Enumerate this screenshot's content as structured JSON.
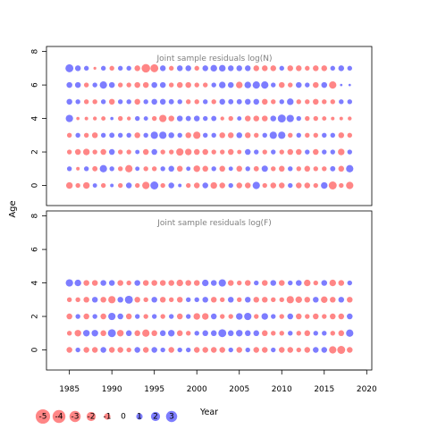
{
  "colors": {
    "positive": "#4040ff",
    "negative": "#ff4d4d",
    "panel_title": "#808080",
    "axis": "#000000"
  },
  "chart_data": [
    {
      "type": "scatter",
      "title": "Joint sample residuals log(N)",
      "xlabel": "",
      "ylabel": "Age",
      "xlim": [
        1982.3,
        2020.6
      ],
      "ylim": [
        -1.2,
        8.3
      ],
      "yticks": [
        0,
        2,
        4,
        6,
        8
      ],
      "x_years": [
        1985,
        1986,
        1987,
        1988,
        1989,
        1990,
        1991,
        1992,
        1993,
        1994,
        1995,
        1996,
        1997,
        1998,
        1999,
        2000,
        2001,
        2002,
        2003,
        2004,
        2005,
        2006,
        2007,
        2008,
        2009,
        2010,
        2011,
        2012,
        2013,
        2014,
        2015,
        2016,
        2017,
        2018
      ],
      "ages": [
        0,
        1,
        2,
        3,
        4,
        5,
        6,
        7
      ],
      "residuals": [
        [
          -2,
          -1,
          -2,
          0.8,
          -1,
          0.5,
          -1,
          1.5,
          -1,
          -2.5,
          3,
          -1,
          1.5,
          0.5,
          -1,
          -1.5,
          1.5,
          -2,
          -1.5,
          1,
          -1.5,
          -1.5,
          2.5,
          -1,
          -1.5,
          -1.5,
          1,
          -1.5,
          -1.5,
          -1,
          2,
          -3,
          -1,
          -2.5
        ],
        [
          1,
          -0.5,
          1,
          -1.2,
          2.5,
          1,
          -1,
          -2.5,
          0.8,
          -1,
          -1,
          1,
          1.5,
          -1.5,
          0.8,
          -2,
          -1.5,
          1,
          -1.5,
          0.8,
          -1.5,
          1,
          -1.2,
          1.8,
          -1,
          -1.5,
          1,
          -1,
          -1.5,
          -1,
          -1,
          1.2,
          -1.5,
          2.5
        ],
        [
          -1,
          -1.5,
          -2,
          -1,
          -1.5,
          1.5,
          -1,
          -1,
          0.8,
          -1.5,
          1.5,
          -1,
          -1,
          -2.5,
          -2,
          -1.5,
          -1.5,
          -1,
          -1,
          -1.5,
          -0.8,
          1.5,
          1,
          -1,
          1,
          -1,
          -1.5,
          -1.5,
          1,
          -1.5,
          1,
          1,
          -2,
          1
        ],
        [
          -1,
          1,
          -1,
          -1.5,
          1,
          1.2,
          1,
          1,
          -1.5,
          1,
          2.5,
          2.5,
          1.5,
          1,
          -1.5,
          -2.5,
          1,
          1,
          -1.5,
          -1.5,
          1.5,
          -1.5,
          -1,
          1,
          2.5,
          2.5,
          -1,
          1,
          -1,
          -1,
          1,
          1,
          -1.5,
          -1
        ],
        [
          2.5,
          -0.4,
          -0.5,
          -0.6,
          -0.8,
          0.4,
          -1,
          -0.6,
          1,
          0.8,
          -1,
          -2.5,
          -1.5,
          1.5,
          1.2,
          1.5,
          1,
          1.2,
          -0.6,
          -1,
          0.8,
          -1.5,
          -1.5,
          -1.5,
          1.5,
          3,
          2.5,
          1,
          -1,
          -1,
          -0.8,
          -0.5,
          -0.5,
          -0.6
        ],
        [
          1.5,
          1,
          -1,
          -1,
          1,
          -1.5,
          1,
          1,
          -1.5,
          1,
          1.5,
          1.5,
          1.2,
          1,
          -1,
          -1,
          1,
          -1,
          1.5,
          1.2,
          1.2,
          1.5,
          1.5,
          -1.5,
          -1,
          1,
          2,
          -1,
          -1,
          -1.5,
          -1,
          -1,
          1,
          1
        ],
        [
          1.5,
          1.5,
          -1,
          1,
          2.5,
          1.5,
          -1,
          -1,
          -1.5,
          -1.5,
          1.5,
          1.5,
          -1,
          -1.5,
          -1.5,
          -1,
          -1,
          1,
          2,
          1.5,
          -2,
          2,
          2.5,
          2.5,
          1,
          -1.5,
          -1,
          1.5,
          1,
          -1.5,
          1.5,
          -2.5,
          0.2,
          0.2
        ],
        [
          3,
          1.5,
          1,
          -0.3,
          1,
          -1,
          1,
          1,
          -1.5,
          -3.5,
          -3,
          1.5,
          -1,
          1.5,
          1.5,
          -1,
          1.5,
          2,
          2,
          1.5,
          1.5,
          1.5,
          -1.5,
          -1.5,
          -1.5,
          1,
          -1.5,
          -1.5,
          -1,
          -1.5,
          -1.5,
          1,
          1.5,
          1
        ]
      ]
    },
    {
      "type": "scatter",
      "title": "Joint sample residuals log(F)",
      "xlabel": "Year",
      "ylabel": "",
      "xlim": [
        1982.3,
        2020.6
      ],
      "ylim": [
        -1.2,
        8.3
      ],
      "xticks": [
        1985,
        1990,
        1995,
        2000,
        2005,
        2010,
        2015,
        2020
      ],
      "yticks": [
        0,
        2,
        4,
        6,
        8
      ],
      "x_years": [
        1985,
        1986,
        1987,
        1988,
        1989,
        1990,
        1991,
        1992,
        1993,
        1994,
        1995,
        1996,
        1997,
        1998,
        1999,
        2000,
        2001,
        2002,
        2003,
        2004,
        2005,
        2006,
        2007,
        2008,
        2009,
        2010,
        2011,
        2012,
        2013,
        2014,
        2015,
        2016,
        2017,
        2018
      ],
      "ages": [
        0,
        1,
        2,
        3,
        4
      ],
      "residuals": [
        [
          -1.5,
          1,
          -1.5,
          -1.5,
          1.5,
          -1.5,
          -1.5,
          -1,
          1.5,
          -1.5,
          1.5,
          1,
          -1.5,
          1,
          1,
          -1.5,
          -1.5,
          -1.5,
          -1.5,
          1,
          -1.5,
          1,
          -1.5,
          -1.5,
          1,
          -1.5,
          -1.5,
          -1,
          -1.5,
          1.5,
          1.5,
          -2.5,
          -3,
          -1.5
        ],
        [
          -1,
          -2,
          2,
          2,
          -1.5,
          3,
          -2,
          1.5,
          -1.5,
          -2.5,
          -1.5,
          1.5,
          2,
          -1.5,
          -1,
          1,
          1.5,
          1.5,
          3,
          1.5,
          2,
          1.5,
          1.5,
          -1.5,
          -1,
          -1,
          1,
          -1,
          -1.5,
          1,
          1,
          -1,
          -1.5,
          2.5
        ],
        [
          -1.5,
          1,
          -1.5,
          1,
          -1.5,
          2.5,
          1.5,
          -1.5,
          1,
          -1,
          1,
          -1,
          1,
          -1.5,
          1,
          -2,
          -2,
          1.5,
          -1,
          -1,
          2,
          2.5,
          -1,
          2,
          1,
          -1,
          1.5,
          -1.5,
          -1,
          -1.5,
          -1,
          -1.5,
          -1.5,
          1.5
        ],
        [
          -1,
          -1,
          -1.5,
          1.5,
          -1.5,
          -2.5,
          1.5,
          3,
          -1.5,
          -1,
          1.5,
          -1.5,
          -1,
          -1.5,
          1,
          1,
          1.5,
          -1.5,
          -1,
          1.5,
          -1,
          1.5,
          -1.5,
          -1.5,
          -1,
          -1,
          -2.5,
          -2,
          -1.5,
          1.5,
          -2,
          -1.5,
          1.5,
          -1.5
        ],
        [
          2.5,
          2,
          -1.5,
          -1.5,
          1.5,
          1.5,
          -1.5,
          -1,
          1.5,
          -1.5,
          -1.5,
          -1.5,
          -1.5,
          -2,
          -1.5,
          -1.5,
          2,
          1.5,
          2.5,
          -1.5,
          -1,
          -1.5,
          1,
          -1.5,
          1.5,
          -1.5,
          1,
          1.5,
          -2,
          -1,
          1.5,
          -2,
          -1.5,
          1
        ]
      ]
    }
  ],
  "legend": {
    "values": [
      -5,
      -4,
      -3,
      -2,
      -1,
      0,
      1,
      2,
      3
    ],
    "labels": [
      "-5",
      "-4",
      "-3",
      "-2",
      "-1",
      "0",
      "1",
      "2",
      "3"
    ]
  },
  "axis_titles": {
    "y": "Age",
    "x": "Year"
  }
}
